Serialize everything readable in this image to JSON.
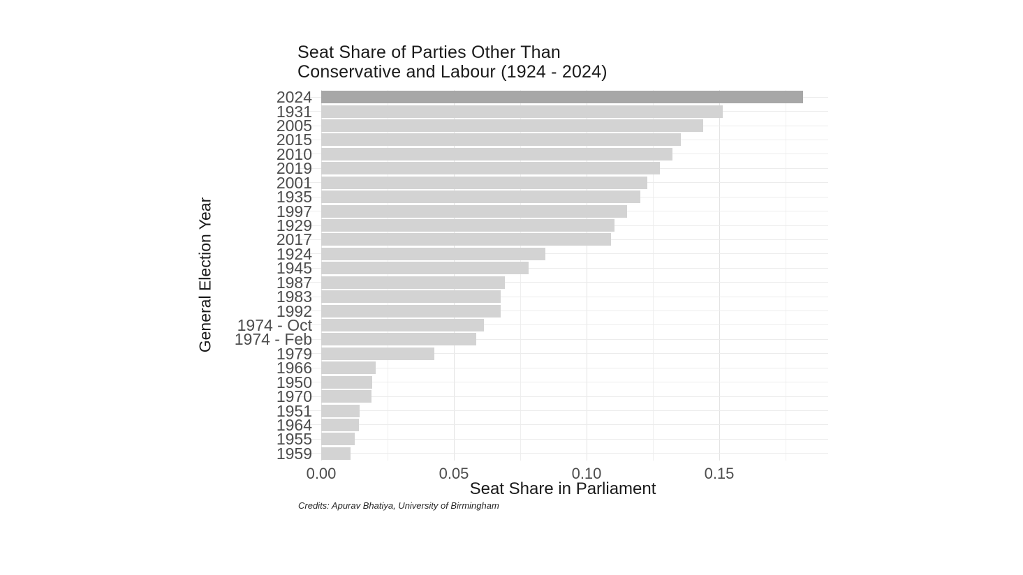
{
  "page": {
    "background": "#ffffff"
  },
  "chart_data": {
    "type": "bar",
    "orientation": "horizontal",
    "title_line1": "Seat Share of Parties Other Than",
    "title_line2": "Conservative and Labour (1924 - 2024)",
    "xlabel": "Seat Share in Parliament",
    "ylabel": "General Election Year",
    "credits": "Credits: Apurav Bhatiya, University of Birmingham",
    "categories": [
      "2024",
      "1931",
      "2005",
      "2015",
      "2010",
      "2019",
      "2001",
      "1935",
      "1997",
      "1929",
      "2017",
      "1924",
      "1945",
      "1987",
      "1983",
      "1992",
      "1974 - Oct",
      "1974 - Feb",
      "1979",
      "1966",
      "1950",
      "1970",
      "1951",
      "1964",
      "1955",
      "1959"
    ],
    "values": [
      0.1815,
      0.1512,
      0.144,
      0.1354,
      0.1323,
      0.1277,
      0.1229,
      0.1203,
      0.1153,
      0.1106,
      0.1092,
      0.0846,
      0.0781,
      0.0692,
      0.0677,
      0.0676,
      0.0614,
      0.0583,
      0.0425,
      0.0206,
      0.0192,
      0.019,
      0.0144,
      0.0143,
      0.0127,
      0.0111
    ],
    "highlight_category": "2024",
    "x_ticks": [
      {
        "value": 0.0,
        "label": "0.00"
      },
      {
        "value": 0.05,
        "label": "0.05"
      },
      {
        "value": 0.1,
        "label": "0.10"
      },
      {
        "value": 0.15,
        "label": "0.15"
      }
    ],
    "x_minor_gridlines": [
      0.025,
      0.075,
      0.125,
      0.175
    ],
    "xlim": [
      0,
      0.191
    ],
    "grid": true,
    "legend": false,
    "colors": {
      "bar_fill": "#d3d3d3",
      "bar_highlight": "#a7a7a7",
      "grid_major": "#e3e3e3",
      "grid_minor": "#efefef",
      "grid_row": "#ececec",
      "axis_text": "#4d4d4d",
      "title_text": "#1a1a1a"
    }
  }
}
